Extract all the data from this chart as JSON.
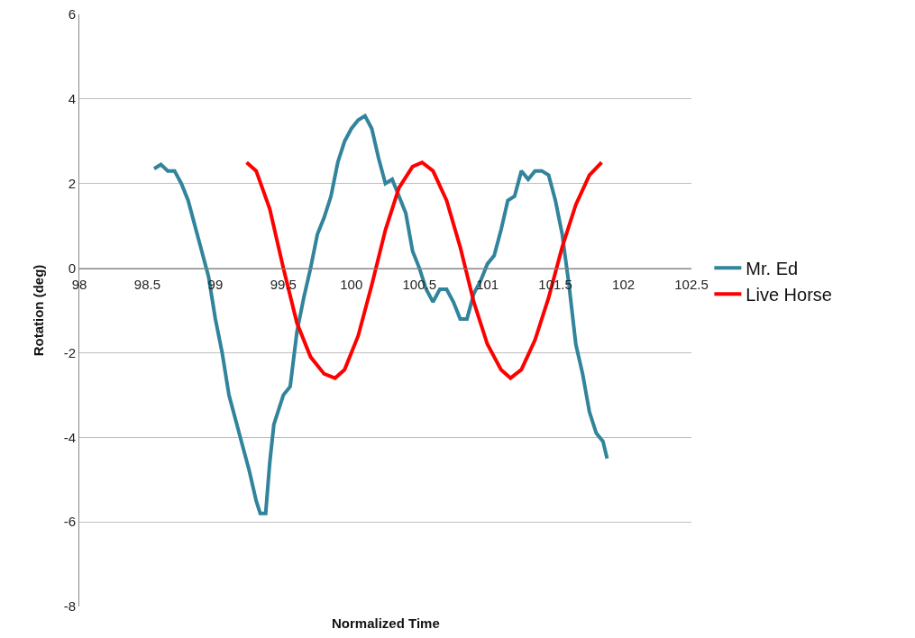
{
  "chart_data": {
    "type": "line",
    "xlabel": "Normalized Time",
    "ylabel": "Rotation (deg)",
    "xlim": [
      98,
      102.5
    ],
    "xticks": [
      98,
      98.5,
      99,
      99.5,
      100,
      100.5,
      101,
      101.5,
      102,
      102.5
    ],
    "ylim": [
      -8,
      6
    ],
    "yticks": [
      -8,
      -6,
      -4,
      -2,
      0,
      2,
      4,
      6
    ],
    "grid": "y",
    "legend": "right",
    "marker": "none",
    "line_style": "solid",
    "series": [
      {
        "name": "Mr. Ed",
        "color": "#31849b",
        "x": [
          98.55,
          98.6,
          98.65,
          98.7,
          98.75,
          98.8,
          98.85,
          98.9,
          98.95,
          99.0,
          99.05,
          99.1,
          99.15,
          99.2,
          99.25,
          99.3,
          99.33,
          99.37,
          99.4,
          99.43,
          99.5,
          99.55,
          99.6,
          99.65,
          99.7,
          99.75,
          99.8,
          99.85,
          99.9,
          99.95,
          100.0,
          100.05,
          100.1,
          100.15,
          100.2,
          100.25,
          100.3,
          100.35,
          100.4,
          100.45,
          100.5,
          100.55,
          100.6,
          100.65,
          100.7,
          100.75,
          100.8,
          100.85,
          100.9,
          100.95,
          101.0,
          101.05,
          101.1,
          101.15,
          101.2,
          101.25,
          101.3,
          101.35,
          101.4,
          101.45,
          101.5,
          101.55,
          101.6,
          101.65,
          101.7,
          101.75,
          101.8,
          101.85,
          101.88
        ],
        "values": [
          2.35,
          2.45,
          2.3,
          2.3,
          2.0,
          1.6,
          1.0,
          0.4,
          -0.2,
          -1.2,
          -2.0,
          -3.0,
          -3.6,
          -4.2,
          -4.8,
          -5.5,
          -5.8,
          -5.8,
          -4.6,
          -3.7,
          -3.0,
          -2.8,
          -1.5,
          -0.7,
          0.0,
          0.8,
          1.2,
          1.7,
          2.5,
          3.0,
          3.3,
          3.5,
          3.6,
          3.3,
          2.6,
          2.0,
          2.1,
          1.7,
          1.3,
          0.4,
          0.0,
          -0.5,
          -0.8,
          -0.5,
          -0.5,
          -0.8,
          -1.2,
          -1.2,
          -0.6,
          -0.3,
          0.1,
          0.3,
          0.9,
          1.6,
          1.7,
          2.3,
          2.1,
          2.3,
          2.3,
          2.2,
          1.6,
          0.8,
          -0.4,
          -1.8,
          -2.5,
          -3.4,
          -3.9,
          -4.1,
          -4.5
        ]
      },
      {
        "name": "Live Horse",
        "color": "#ff0000",
        "x": [
          99.23,
          99.3,
          99.4,
          99.5,
          99.6,
          99.7,
          99.8,
          99.88,
          99.95,
          100.05,
          100.15,
          100.25,
          100.35,
          100.45,
          100.52,
          100.6,
          100.7,
          100.8,
          100.9,
          101.0,
          101.1,
          101.17,
          101.25,
          101.35,
          101.45,
          101.55,
          101.65,
          101.75,
          101.84
        ],
        "values": [
          2.5,
          2.3,
          1.4,
          0.0,
          -1.3,
          -2.1,
          -2.5,
          -2.6,
          -2.4,
          -1.6,
          -0.4,
          0.9,
          1.9,
          2.4,
          2.5,
          2.3,
          1.6,
          0.5,
          -0.8,
          -1.8,
          -2.4,
          -2.6,
          -2.4,
          -1.7,
          -0.7,
          0.5,
          1.5,
          2.2,
          2.5
        ]
      }
    ]
  }
}
